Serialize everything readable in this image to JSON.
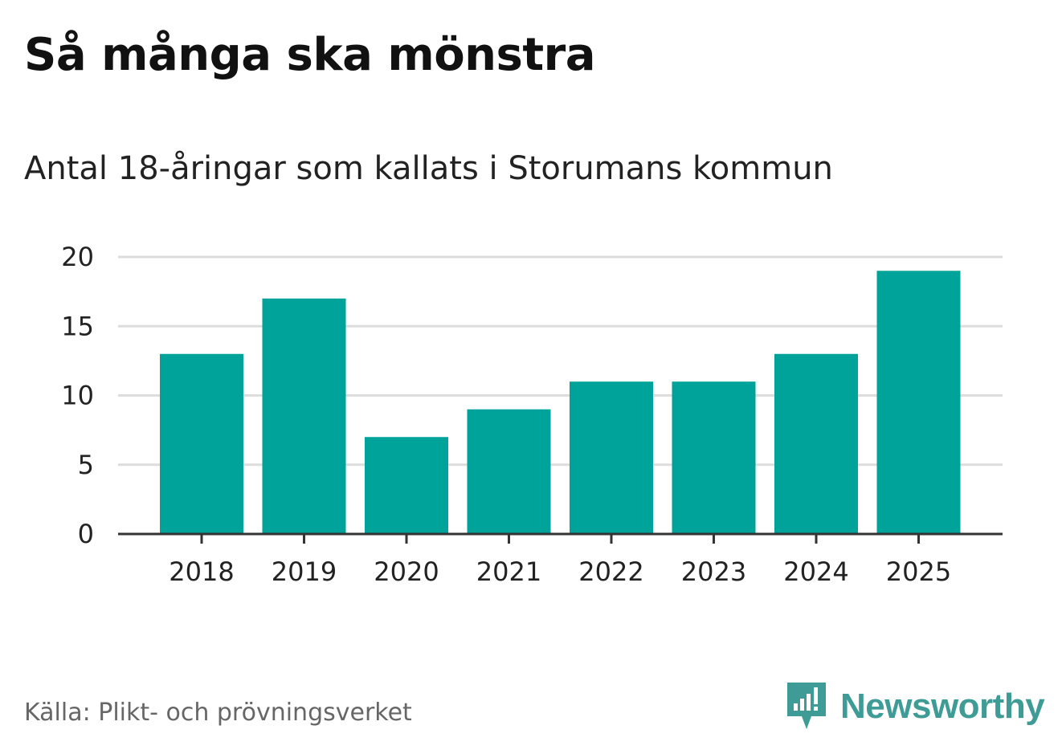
{
  "chart_data": {
    "type": "bar",
    "title": "Så många ska mönstra",
    "subtitle": "Antal 18-åringar som kallats i Storumans kommun",
    "categories": [
      "2018",
      "2019",
      "2020",
      "2021",
      "2022",
      "2023",
      "2024",
      "2025"
    ],
    "values": [
      13,
      17,
      7,
      9,
      11,
      11,
      13,
      19
    ],
    "xlabel": "",
    "ylabel": "",
    "ylim": [
      0,
      20
    ],
    "yticks": [
      0,
      5,
      10,
      15,
      20
    ],
    "grid": true,
    "bar_color": "#00a39a",
    "grid_color": "#dddddd",
    "axis_color": "#333333"
  },
  "footer": {
    "source": "Källa: Plikt- och prövningsverket",
    "brand": "Newsworthy",
    "brand_color": "#3f9b95"
  }
}
